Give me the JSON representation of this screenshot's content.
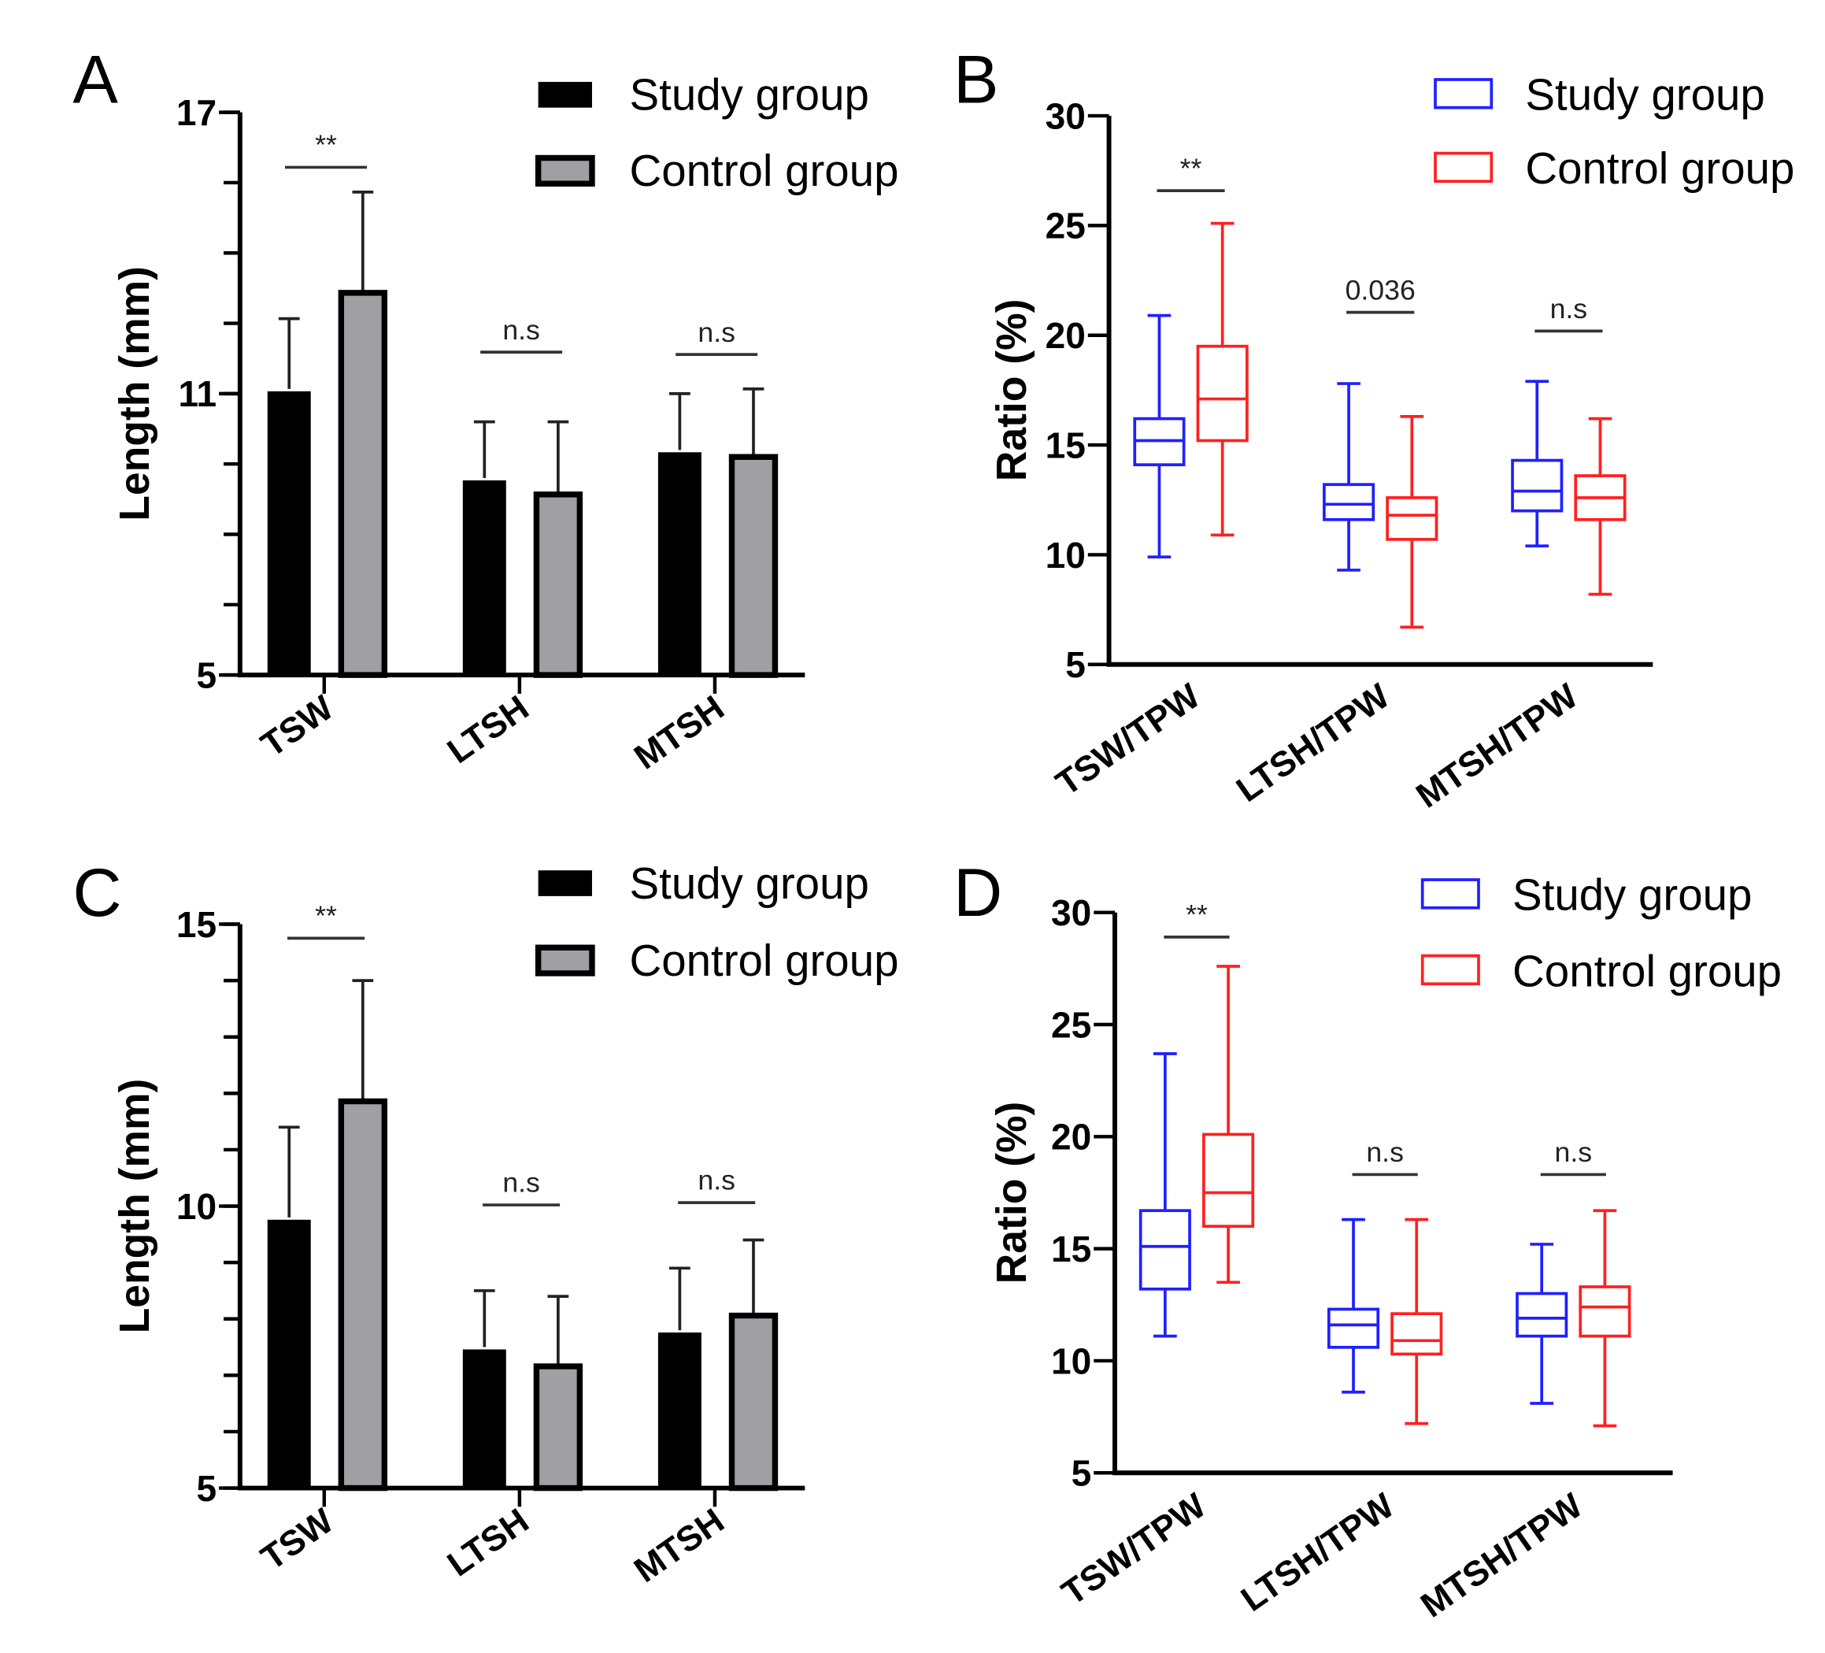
{
  "colors": {
    "study_bar": "#000000",
    "control_bar": "#a0a0a4",
    "study_box": "#2020ff",
    "control_box": "#ff2020"
  },
  "chart_data": [
    {
      "panel": "A",
      "type": "bar",
      "ylabel": "Length (mm)",
      "ylim": [
        5,
        17
      ],
      "yticks": [
        5,
        11,
        17
      ],
      "minor_step": 1.5,
      "categories": [
        "TSW",
        "LTSH",
        "MTSH"
      ],
      "legend": [
        "Study group",
        "Control group"
      ],
      "legend_position": "top-right",
      "series": [
        {
          "name": "Study group",
          "values": [
            11.1,
            9.2,
            9.8
          ],
          "error_upper": [
            12.6,
            10.4,
            11.0
          ]
        },
        {
          "name": "Control group",
          "values": [
            13.2,
            8.9,
            9.7
          ],
          "error_upper": [
            15.3,
            10.4,
            11.1
          ]
        }
      ],
      "significance": [
        "**",
        "n.s",
        "n.s"
      ]
    },
    {
      "panel": "B",
      "type": "box",
      "ylabel": "Ratio (%)",
      "ylim": [
        5,
        30
      ],
      "yticks": [
        5,
        10,
        15,
        20,
        25,
        30
      ],
      "categories": [
        "TSW/TPW",
        "LTSH/TPW",
        "MTSH/TPW"
      ],
      "legend": [
        "Study group",
        "Control group"
      ],
      "legend_position": "top-right",
      "series": [
        {
          "name": "Study group",
          "boxes": [
            {
              "min": 9.9,
              "q1": 14.1,
              "median": 15.2,
              "q3": 16.2,
              "max": 20.9
            },
            {
              "min": 9.3,
              "q1": 11.6,
              "median": 12.3,
              "q3": 13.2,
              "max": 17.8
            },
            {
              "min": 10.4,
              "q1": 12.0,
              "median": 12.9,
              "q3": 14.3,
              "max": 17.9
            }
          ]
        },
        {
          "name": "Control group",
          "boxes": [
            {
              "min": 10.9,
              "q1": 15.2,
              "median": 17.1,
              "q3": 19.5,
              "max": 25.1
            },
            {
              "min": 6.7,
              "q1": 10.7,
              "median": 11.8,
              "q3": 12.6,
              "max": 16.3
            },
            {
              "min": 8.2,
              "q1": 11.6,
              "median": 12.6,
              "q3": 13.6,
              "max": 16.2
            }
          ]
        }
      ],
      "significance": [
        "**",
        "0.036",
        "n.s"
      ]
    },
    {
      "panel": "C",
      "type": "bar",
      "ylabel": "Length (mm)",
      "ylim": [
        5,
        15
      ],
      "yticks": [
        5,
        10,
        15
      ],
      "minor_step": 1,
      "categories": [
        "TSW",
        "LTSH",
        "MTSH"
      ],
      "legend": [
        "Study group",
        "Control group"
      ],
      "legend_position": "top-right",
      "series": [
        {
          "name": "Study group",
          "values": [
            9.8,
            7.5,
            7.8
          ],
          "error_upper": [
            11.4,
            8.5,
            8.9
          ]
        },
        {
          "name": "Control group",
          "values": [
            11.9,
            7.2,
            8.1
          ],
          "error_upper": [
            14.0,
            8.4,
            9.4
          ]
        }
      ],
      "significance": [
        "**",
        "n.s",
        "n.s"
      ]
    },
    {
      "panel": "D",
      "type": "box",
      "ylabel": "Ratio (%)",
      "ylim": [
        5,
        30
      ],
      "yticks": [
        5,
        10,
        15,
        20,
        25,
        30
      ],
      "categories": [
        "TSW/TPW",
        "LTSH/TPW",
        "MTSH/TPW"
      ],
      "legend": [
        "Study group",
        "Control group"
      ],
      "legend_position": "top-right",
      "series": [
        {
          "name": "Study group",
          "boxes": [
            {
              "min": 11.1,
              "q1": 13.2,
              "median": 15.1,
              "q3": 16.7,
              "max": 23.7
            },
            {
              "min": 8.6,
              "q1": 10.6,
              "median": 11.6,
              "q3": 12.3,
              "max": 16.3
            },
            {
              "min": 8.1,
              "q1": 11.1,
              "median": 11.9,
              "q3": 13.0,
              "max": 15.2
            }
          ]
        },
        {
          "name": "Control group",
          "boxes": [
            {
              "min": 13.5,
              "q1": 16.0,
              "median": 17.5,
              "q3": 20.1,
              "max": 27.6
            },
            {
              "min": 7.2,
              "q1": 10.3,
              "median": 10.9,
              "q3": 12.1,
              "max": 16.3
            },
            {
              "min": 7.1,
              "q1": 11.1,
              "median": 12.4,
              "q3": 13.3,
              "max": 16.7
            }
          ]
        }
      ],
      "significance": [
        "**",
        "n.s",
        "n.s"
      ]
    }
  ]
}
